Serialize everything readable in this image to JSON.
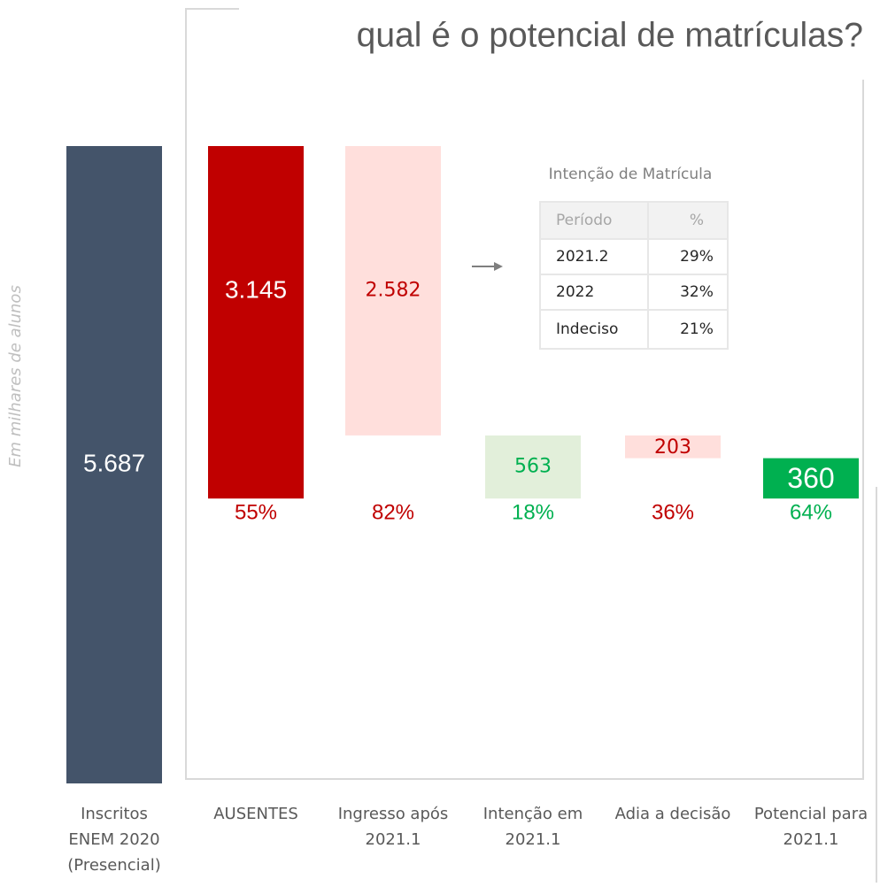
{
  "chart_data": {
    "type": "waterfall",
    "title": "qual é o potencial de matrículas?",
    "y_axis_label": "Em milhares de alunos",
    "categories": [
      "Inscritos\nENEM 2020\n(Presencial)",
      "AUSENTES",
      "Ingresso após\n2021.1",
      "Intenção em\n2021.1",
      "Adia a decisão",
      "Potencial para\n2021.1"
    ],
    "values": [
      5687,
      3145,
      2582,
      563,
      203,
      360
    ],
    "value_labels": [
      "5.687",
      "3.145",
      "2.582",
      "563",
      "203",
      "360"
    ],
    "colors": [
      "#44546a",
      "#c00000",
      "#ffdfdc",
      "#e2efda",
      "#ffdfdc",
      "#00b050"
    ],
    "label_colors": [
      "#ffffff",
      "#ffffff",
      "#c00000",
      "#00b050",
      "#c00000",
      "#ffffff"
    ],
    "percent_labels": [
      null,
      "55%",
      "82%",
      "18%",
      "36%",
      "64%"
    ],
    "percent_colors": [
      null,
      "#c00000",
      "#c00000",
      "#00b050",
      "#c00000",
      "#00b050"
    ],
    "inset_table": {
      "title": "Intenção de Matrícula",
      "header": [
        "Período",
        "%"
      ],
      "rows": [
        [
          "2021.2",
          "29%"
        ],
        [
          "2022",
          "32%"
        ],
        [
          "Indeciso",
          "21%"
        ]
      ]
    }
  }
}
